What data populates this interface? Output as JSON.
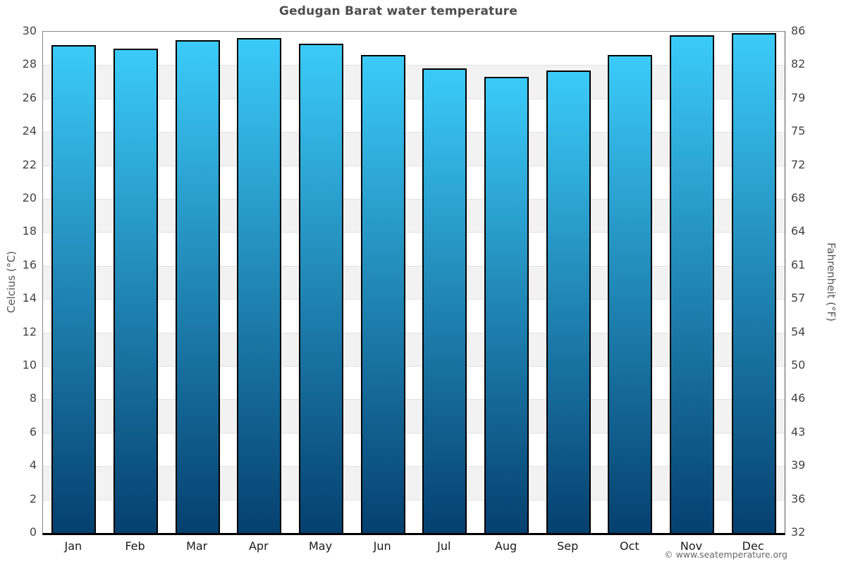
{
  "title": "Gedugan Barat water temperature",
  "footer": {
    "copyright": "© www.seatemperature.org"
  },
  "chart_data": {
    "type": "bar",
    "title": "Gedugan Barat water temperature",
    "categories": [
      "Jan",
      "Feb",
      "Mar",
      "Apr",
      "May",
      "Jun",
      "Jul",
      "Aug",
      "Sep",
      "Oct",
      "Nov",
      "Dec"
    ],
    "values": [
      29.2,
      29.0,
      29.5,
      29.6,
      29.3,
      28.6,
      27.8,
      27.3,
      27.7,
      28.6,
      29.8,
      29.9
    ],
    "unit": "°C",
    "xlabel": "",
    "ylabel_left": "Celcius (°C)",
    "ylabel_right": "Fahrenheit (°F)",
    "ylim": [
      0,
      30
    ],
    "yticks_left": [
      0,
      2,
      4,
      6,
      8,
      10,
      12,
      14,
      16,
      18,
      20,
      22,
      24,
      26,
      28,
      30
    ],
    "yticks_right": [
      32,
      36,
      39,
      43,
      46,
      50,
      54,
      57,
      61,
      64,
      68,
      72,
      75,
      79,
      82,
      86
    ],
    "grid": "alternating-horizontal-bands",
    "legend": "none",
    "colors": {
      "bar_gradient_top": "#3bcbf9",
      "bar_gradient_bottom": "#05406f",
      "bar_border": "#000000",
      "band_light": "#ffffff",
      "band_dark": "#f2f2f2",
      "gridline": "#e2e2e2",
      "axis_border": "#888888",
      "baseline": "#000000",
      "title_text": "#4d4d4d",
      "tick_text": "#444444",
      "footer_text": "#666666"
    }
  }
}
